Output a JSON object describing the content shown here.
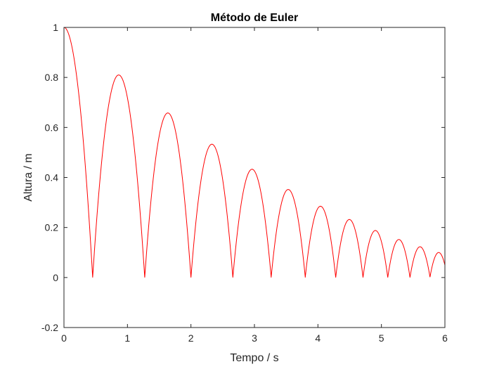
{
  "chart_data": {
    "type": "line",
    "title": "Método de Euler",
    "xlabel": "Tempo / s",
    "ylabel": "Altura / m",
    "xlim": [
      0,
      6
    ],
    "ylim": [
      -0.2,
      1
    ],
    "xticks": [
      0,
      1,
      2,
      3,
      4,
      5,
      6
    ],
    "xtick_labels": [
      "0",
      "1",
      "2",
      "3",
      "4",
      "5",
      "6"
    ],
    "yticks": [
      -0.2,
      0,
      0.2,
      0.4,
      0.6,
      0.8,
      1
    ],
    "ytick_labels": [
      "-0.2",
      "0",
      "0.2",
      "0.4",
      "0.6",
      "0.8",
      "1"
    ],
    "grid": false,
    "box": true,
    "series": [
      {
        "color": "#ff0000",
        "segments": [
          {
            "start": 0.0,
            "end": 0.452,
            "peak_time": 0.0,
            "peak_height": 1.0
          },
          {
            "start": 0.452,
            "end": 1.272,
            "peak_time": 0.862,
            "peak_height": 0.81
          },
          {
            "start": 1.272,
            "end": 2.0,
            "peak_time": 1.636,
            "peak_height": 0.658
          },
          {
            "start": 2.0,
            "end": 2.66,
            "peak_time": 2.33,
            "peak_height": 0.533
          },
          {
            "start": 2.66,
            "end": 3.263,
            "peak_time": 2.962,
            "peak_height": 0.433
          },
          {
            "start": 3.263,
            "end": 3.8,
            "peak_time": 3.532,
            "peak_height": 0.352
          },
          {
            "start": 3.8,
            "end": 4.28,
            "peak_time": 4.04,
            "peak_height": 0.285
          },
          {
            "start": 4.28,
            "end": 4.71,
            "peak_time": 4.495,
            "peak_height": 0.232
          },
          {
            "start": 4.71,
            "end": 5.1,
            "peak_time": 4.905,
            "peak_height": 0.188
          },
          {
            "start": 5.1,
            "end": 5.45,
            "peak_time": 5.275,
            "peak_height": 0.152
          },
          {
            "start": 5.45,
            "end": 5.765,
            "peak_time": 5.608,
            "peak_height": 0.123
          },
          {
            "start": 5.765,
            "end": 6.04,
            "peak_time": 5.902,
            "peak_height": 0.1
          }
        ]
      }
    ]
  }
}
